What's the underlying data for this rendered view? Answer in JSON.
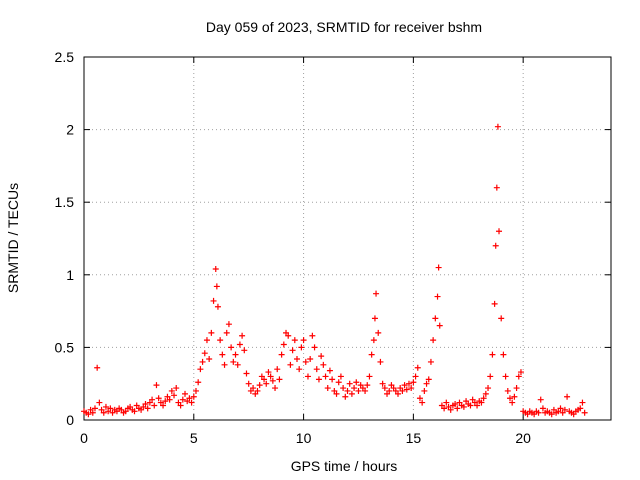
{
  "chart_data": {
    "type": "scatter",
    "title": "Day 059 of 2023, SRMTID for receiver bshm",
    "xlabel": "GPS time / hours",
    "ylabel": "SRMTID / TECUs",
    "xlim": [
      0,
      24
    ],
    "ylim": [
      0,
      2.5
    ],
    "xticks": [
      0,
      5,
      10,
      15,
      20
    ],
    "xtick_labels": [
      "0",
      "5",
      "10",
      "15",
      "20"
    ],
    "yticks": [
      0,
      0.5,
      1,
      1.5,
      2,
      2.5
    ],
    "ytick_labels": [
      "0",
      "0.5",
      "1",
      "1.5",
      "2",
      "2.5"
    ],
    "grid": true,
    "marker": "+",
    "color": "#ff0000",
    "series": [
      {
        "name": "SRMTID",
        "x": [
          0.0,
          0.1,
          0.2,
          0.3,
          0.4,
          0.5,
          0.6,
          0.7,
          0.8,
          0.9,
          1.0,
          1.1,
          1.2,
          1.3,
          1.4,
          1.5,
          1.6,
          1.7,
          1.8,
          1.9,
          2.0,
          2.1,
          2.2,
          2.3,
          2.4,
          2.5,
          2.6,
          2.7,
          2.8,
          2.9,
          3.0,
          3.1,
          3.2,
          3.3,
          3.4,
          3.5,
          3.6,
          3.7,
          3.8,
          3.9,
          4.0,
          4.1,
          4.2,
          4.3,
          4.4,
          4.5,
          4.6,
          4.7,
          4.8,
          4.9,
          5.0,
          5.1,
          5.2,
          5.3,
          5.4,
          5.5,
          5.6,
          5.7,
          5.8,
          5.9,
          6.0,
          6.05,
          6.1,
          6.2,
          6.3,
          6.4,
          6.5,
          6.6,
          6.7,
          6.8,
          6.9,
          7.0,
          7.1,
          7.2,
          7.3,
          7.4,
          7.5,
          7.6,
          7.7,
          7.8,
          7.9,
          8.0,
          8.1,
          8.2,
          8.3,
          8.4,
          8.5,
          8.6,
          8.7,
          8.8,
          8.9,
          9.0,
          9.1,
          9.2,
          9.3,
          9.4,
          9.5,
          9.6,
          9.7,
          9.8,
          9.9,
          10.0,
          10.1,
          10.2,
          10.3,
          10.4,
          10.5,
          10.6,
          10.7,
          10.8,
          10.9,
          11.0,
          11.1,
          11.2,
          11.3,
          11.4,
          11.5,
          11.6,
          11.7,
          11.8,
          11.9,
          12.0,
          12.1,
          12.2,
          12.3,
          12.4,
          12.5,
          12.6,
          12.7,
          12.8,
          12.9,
          13.0,
          13.1,
          13.2,
          13.25,
          13.3,
          13.4,
          13.5,
          13.6,
          13.7,
          13.8,
          13.9,
          14.0,
          14.1,
          14.2,
          14.3,
          14.4,
          14.5,
          14.6,
          14.7,
          14.8,
          14.9,
          15.0,
          15.1,
          15.2,
          15.3,
          15.4,
          15.5,
          15.6,
          15.7,
          15.8,
          15.9,
          16.0,
          16.1,
          16.15,
          16.2,
          16.3,
          16.4,
          16.5,
          16.6,
          16.7,
          16.8,
          16.9,
          17.0,
          17.1,
          17.2,
          17.3,
          17.4,
          17.5,
          17.6,
          17.7,
          17.8,
          17.9,
          18.0,
          18.1,
          18.2,
          18.3,
          18.4,
          18.5,
          18.6,
          18.7,
          18.75,
          18.8,
          18.85,
          18.9,
          19.0,
          19.1,
          19.2,
          19.3,
          19.4,
          19.5,
          19.6,
          19.7,
          19.8,
          19.9,
          20.0,
          20.1,
          20.2,
          20.3,
          20.4,
          20.5,
          20.6,
          20.7,
          20.8,
          20.9,
          21.0,
          21.1,
          21.2,
          21.3,
          21.4,
          21.5,
          21.6,
          21.7,
          21.8,
          21.9,
          22.0,
          22.1,
          22.2,
          22.3,
          22.4,
          22.5,
          22.6,
          22.7,
          22.8
        ],
        "y": [
          0.06,
          0.05,
          0.04,
          0.07,
          0.05,
          0.08,
          0.36,
          0.12,
          0.07,
          0.05,
          0.09,
          0.06,
          0.08,
          0.05,
          0.07,
          0.06,
          0.08,
          0.07,
          0.05,
          0.06,
          0.08,
          0.09,
          0.07,
          0.06,
          0.1,
          0.08,
          0.07,
          0.09,
          0.11,
          0.08,
          0.12,
          0.14,
          0.1,
          0.24,
          0.15,
          0.12,
          0.1,
          0.13,
          0.16,
          0.14,
          0.2,
          0.17,
          0.22,
          0.12,
          0.1,
          0.14,
          0.18,
          0.13,
          0.15,
          0.12,
          0.16,
          0.2,
          0.26,
          0.35,
          0.4,
          0.46,
          0.55,
          0.42,
          0.6,
          0.82,
          1.04,
          0.92,
          0.78,
          0.55,
          0.45,
          0.38,
          0.6,
          0.66,
          0.5,
          0.4,
          0.45,
          0.38,
          0.52,
          0.58,
          0.48,
          0.32,
          0.25,
          0.2,
          0.22,
          0.18,
          0.2,
          0.24,
          0.3,
          0.28,
          0.25,
          0.33,
          0.3,
          0.27,
          0.22,
          0.35,
          0.28,
          0.45,
          0.52,
          0.6,
          0.58,
          0.38,
          0.48,
          0.55,
          0.42,
          0.35,
          0.5,
          0.55,
          0.4,
          0.3,
          0.42,
          0.58,
          0.5,
          0.35,
          0.28,
          0.44,
          0.38,
          0.3,
          0.22,
          0.34,
          0.28,
          0.2,
          0.18,
          0.26,
          0.3,
          0.22,
          0.16,
          0.2,
          0.25,
          0.18,
          0.22,
          0.26,
          0.2,
          0.24,
          0.22,
          0.2,
          0.24,
          0.3,
          0.45,
          0.55,
          0.7,
          0.87,
          0.6,
          0.4,
          0.25,
          0.22,
          0.18,
          0.2,
          0.24,
          0.22,
          0.2,
          0.18,
          0.22,
          0.2,
          0.24,
          0.21,
          0.25,
          0.22,
          0.26,
          0.3,
          0.36,
          0.15,
          0.12,
          0.2,
          0.25,
          0.28,
          0.4,
          0.55,
          0.7,
          0.85,
          1.05,
          0.65,
          0.1,
          0.08,
          0.12,
          0.09,
          0.07,
          0.1,
          0.11,
          0.08,
          0.12,
          0.1,
          0.09,
          0.13,
          0.11,
          0.1,
          0.14,
          0.12,
          0.1,
          0.13,
          0.12,
          0.15,
          0.18,
          0.22,
          0.3,
          0.45,
          0.8,
          1.2,
          1.6,
          2.02,
          1.3,
          0.7,
          0.45,
          0.3,
          0.2,
          0.15,
          0.12,
          0.16,
          0.22,
          0.3,
          0.33,
          0.06,
          0.05,
          0.04,
          0.06,
          0.05,
          0.04,
          0.06,
          0.05,
          0.14,
          0.08,
          0.05,
          0.06,
          0.05,
          0.04,
          0.07,
          0.05,
          0.06,
          0.08,
          0.05,
          0.07,
          0.16,
          0.06,
          0.05,
          0.04,
          0.06,
          0.07,
          0.08,
          0.12,
          0.05
        ]
      }
    ]
  }
}
